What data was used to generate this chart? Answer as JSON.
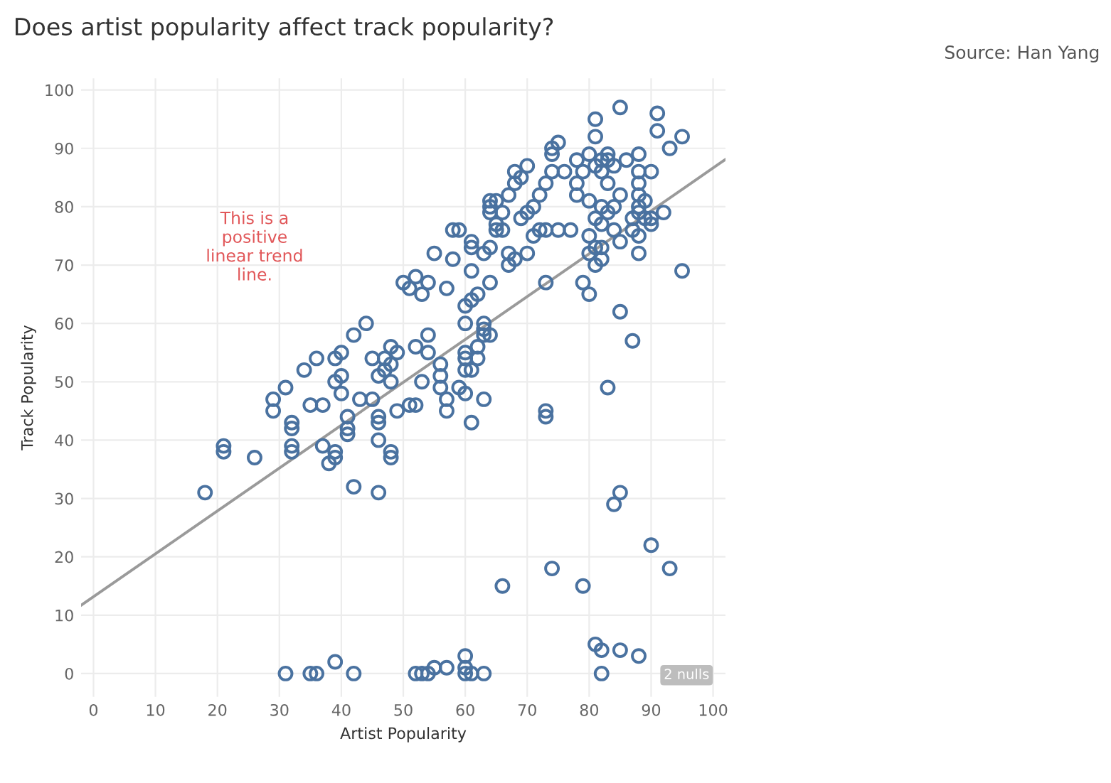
{
  "chart_data": {
    "type": "scatter",
    "title": "Does artist popularity affect track popularity?",
    "xlabel": "Artist Popularity",
    "ylabel": "Track Popularity",
    "annotations": [
      "This is a positive linear trend line.",
      "2 nulls",
      "Source: Han Yang"
    ],
    "xlim": [
      -2,
      102
    ],
    "ylim": [
      -4,
      102
    ],
    "xticks": [
      0,
      10,
      20,
      30,
      40,
      50,
      60,
      70,
      80,
      90,
      100
    ],
    "yticks": [
      0,
      10,
      20,
      30,
      40,
      50,
      60,
      70,
      80,
      90,
      100
    ],
    "grid": true,
    "series": [
      {
        "marker": "circle",
        "color": "#4a72a0",
        "x": [
          31,
          35,
          36,
          39,
          42,
          52,
          53,
          54,
          55,
          57,
          60,
          60,
          60,
          61,
          63,
          81,
          82,
          85,
          88,
          82,
          66,
          74,
          79,
          84,
          85,
          90,
          93,
          83,
          87,
          85,
          95,
          18,
          21,
          21,
          26,
          29,
          29,
          31,
          32,
          32,
          32,
          32,
          34,
          35,
          36,
          37,
          37,
          38,
          39,
          39,
          39,
          39,
          40,
          40,
          40,
          41,
          41,
          41,
          42,
          42,
          43,
          44,
          45,
          45,
          46,
          46,
          46,
          46,
          46,
          47,
          47,
          48,
          48,
          48,
          48,
          48,
          49,
          49,
          50,
          51,
          51,
          52,
          52,
          52,
          53,
          53,
          54,
          54,
          54,
          55,
          56,
          56,
          56,
          57,
          57,
          57,
          58,
          58,
          59,
          59,
          60,
          60,
          60,
          60,
          60,
          60,
          61,
          61,
          61,
          61,
          61,
          61,
          62,
          62,
          62,
          63,
          63,
          63,
          63,
          63,
          64,
          64,
          64,
          64,
          64,
          64,
          65,
          65,
          65,
          66,
          66,
          67,
          67,
          67,
          68,
          68,
          68,
          69,
          69,
          70,
          70,
          70,
          71,
          71,
          72,
          72,
          73,
          73,
          73,
          73,
          73,
          74,
          74,
          74,
          75,
          75,
          76,
          77,
          78,
          78,
          78,
          79,
          79,
          80,
          80,
          80,
          80,
          80,
          81,
          81,
          81,
          81,
          81,
          81,
          82,
          82,
          82,
          82,
          82,
          82,
          83,
          83,
          83,
          83,
          84,
          84,
          84,
          85,
          85,
          85,
          86,
          87,
          87,
          88,
          88,
          88,
          88,
          88,
          88,
          88,
          88,
          89,
          89,
          90,
          90,
          90,
          91,
          91,
          92,
          93,
          95
        ],
        "values": [
          0,
          0,
          0,
          2,
          0,
          0,
          0,
          0,
          1,
          1,
          0,
          3,
          1,
          0,
          0,
          5,
          4,
          4,
          3,
          0,
          15,
          18,
          15,
          29,
          31,
          22,
          18,
          49,
          57,
          62,
          69,
          31,
          39,
          38,
          37,
          45,
          47,
          49,
          43,
          42,
          39,
          38,
          52,
          46,
          54,
          46,
          39,
          36,
          37,
          38,
          50,
          54,
          48,
          51,
          55,
          44,
          42,
          41,
          58,
          32,
          47,
          60,
          47,
          54,
          43,
          44,
          40,
          31,
          51,
          52,
          54,
          38,
          37,
          56,
          53,
          50,
          55,
          45,
          67,
          66,
          46,
          68,
          56,
          46,
          65,
          50,
          67,
          58,
          55,
          72,
          49,
          53,
          51,
          66,
          45,
          47,
          71,
          76,
          76,
          49,
          48,
          55,
          54,
          52,
          63,
          60,
          64,
          69,
          74,
          73,
          43,
          52,
          65,
          54,
          56,
          72,
          58,
          59,
          47,
          60,
          79,
          80,
          81,
          73,
          58,
          67,
          77,
          76,
          81,
          79,
          76,
          72,
          70,
          82,
          71,
          86,
          84,
          78,
          85,
          79,
          72,
          87,
          75,
          80,
          82,
          76,
          76,
          44,
          45,
          67,
          84,
          89,
          90,
          86,
          91,
          76,
          86,
          76,
          84,
          82,
          88,
          67,
          86,
          65,
          72,
          89,
          81,
          75,
          92,
          95,
          87,
          78,
          73,
          70,
          86,
          80,
          88,
          73,
          71,
          77,
          79,
          84,
          88,
          89,
          87,
          80,
          76,
          97,
          82,
          74,
          88,
          76,
          78,
          72,
          75,
          79,
          80,
          82,
          84,
          86,
          89,
          78,
          81,
          77,
          78,
          86,
          96,
          93,
          79,
          90,
          92
        ]
      },
      {
        "type": "line",
        "marker": "none",
        "color": "#9a9a9a",
        "x": [
          -2,
          102
        ],
        "values": [
          11.7,
          88.1
        ]
      }
    ]
  }
}
